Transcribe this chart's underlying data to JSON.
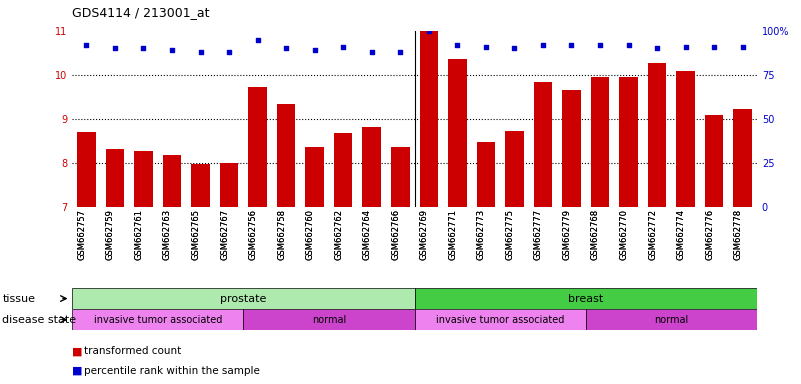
{
  "title": "GDS4114 / 213001_at",
  "samples": [
    "GSM662757",
    "GSM662759",
    "GSM662761",
    "GSM662763",
    "GSM662765",
    "GSM662767",
    "GSM662756",
    "GSM662758",
    "GSM662760",
    "GSM662762",
    "GSM662764",
    "GSM662766",
    "GSM662769",
    "GSM662771",
    "GSM662773",
    "GSM662775",
    "GSM662777",
    "GSM662779",
    "GSM662768",
    "GSM662770",
    "GSM662772",
    "GSM662774",
    "GSM662776",
    "GSM662778"
  ],
  "bar_values": [
    8.7,
    8.33,
    8.27,
    8.18,
    7.99,
    8.01,
    9.73,
    9.35,
    8.37,
    8.68,
    8.83,
    8.36,
    11.0,
    10.35,
    8.47,
    8.73,
    9.83,
    9.65,
    9.95,
    9.95,
    10.28,
    10.08,
    9.1,
    9.22
  ],
  "percentile_values": [
    92,
    90,
    90,
    89,
    88,
    88,
    95,
    90,
    89,
    91,
    88,
    88,
    100,
    92,
    91,
    90,
    92,
    92,
    92,
    92,
    90,
    91,
    91,
    91
  ],
  "bar_color": "#cc0000",
  "percentile_color": "#0000cc",
  "ylim_left": [
    7,
    11
  ],
  "ylim_right": [
    0,
    100
  ],
  "yticks_left": [
    7,
    8,
    9,
    10,
    11
  ],
  "yticks_right": [
    0,
    25,
    50,
    75,
    100
  ],
  "tissue_groups": [
    {
      "label": "prostate",
      "start": 0,
      "end": 12,
      "color": "#aeeaae"
    },
    {
      "label": "breast",
      "start": 12,
      "end": 24,
      "color": "#44cc44"
    }
  ],
  "disease_groups": [
    {
      "label": "invasive tumor associated",
      "start": 0,
      "end": 6,
      "color": "#ee82ee"
    },
    {
      "label": "normal",
      "start": 6,
      "end": 12,
      "color": "#cc44cc"
    },
    {
      "label": "invasive tumor associated",
      "start": 12,
      "end": 18,
      "color": "#ee82ee"
    },
    {
      "label": "normal",
      "start": 18,
      "end": 24,
      "color": "#cc44cc"
    }
  ],
  "legend_items": [
    {
      "label": "transformed count",
      "color": "#cc0000"
    },
    {
      "label": "percentile rank within the sample",
      "color": "#0000cc"
    }
  ],
  "background_color": "#ffffff",
  "plot_bg_color": "#ffffff",
  "yaxis_left_color": "#cc0000",
  "yaxis_right_color": "#0000cc"
}
